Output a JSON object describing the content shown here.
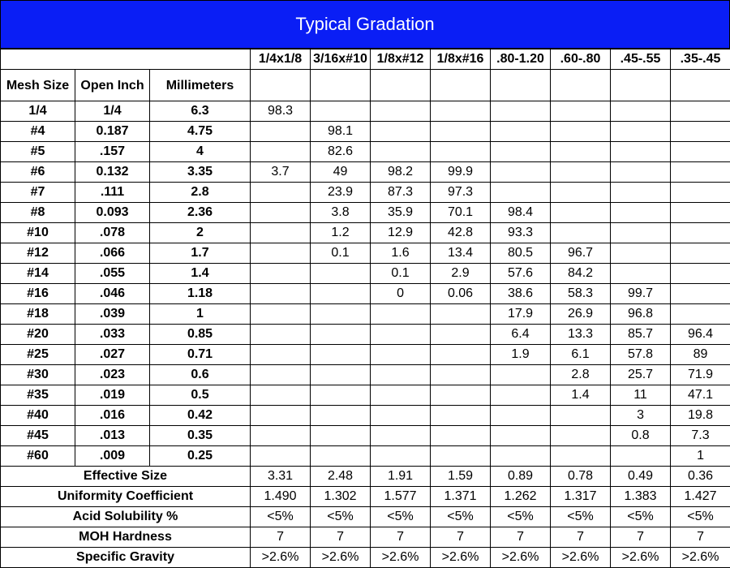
{
  "title": "Typical Gradation",
  "products": [
    "1/4x1/8",
    "3/16x#10",
    "1/8x#12",
    "1/8x#16",
    ".80-1.20",
    ".60-.80",
    ".45-.55",
    ".35-.45"
  ],
  "col_headers": {
    "mesh": "Mesh Size",
    "open": "Open Inch",
    "mm": "Millimeters"
  },
  "rows": [
    {
      "mesh": "1/4",
      "open": "1/4",
      "mm": "6.3",
      "values": [
        "98.3",
        "",
        "",
        "",
        "",
        "",
        "",
        ""
      ]
    },
    {
      "mesh": "#4",
      "open": "0.187",
      "mm": "4.75",
      "values": [
        "",
        "98.1",
        "",
        "",
        "",
        "",
        "",
        ""
      ]
    },
    {
      "mesh": "#5",
      "open": ".157",
      "mm": "4",
      "values": [
        "",
        "82.6",
        "",
        "",
        "",
        "",
        "",
        ""
      ]
    },
    {
      "mesh": "#6",
      "open": "0.132",
      "mm": "3.35",
      "values": [
        "3.7",
        "49",
        "98.2",
        "99.9",
        "",
        "",
        "",
        ""
      ]
    },
    {
      "mesh": "#7",
      "open": ".111",
      "mm": "2.8",
      "values": [
        "",
        "23.9",
        "87.3",
        "97.3",
        "",
        "",
        "",
        ""
      ]
    },
    {
      "mesh": "#8",
      "open": "0.093",
      "mm": "2.36",
      "values": [
        "",
        "3.8",
        "35.9",
        "70.1",
        "98.4",
        "",
        "",
        ""
      ]
    },
    {
      "mesh": "#10",
      "open": ".078",
      "mm": "2",
      "values": [
        "",
        "1.2",
        "12.9",
        "42.8",
        "93.3",
        "",
        "",
        ""
      ]
    },
    {
      "mesh": "#12",
      "open": ".066",
      "mm": "1.7",
      "values": [
        "",
        "0.1",
        "1.6",
        "13.4",
        "80.5",
        "96.7",
        "",
        ""
      ]
    },
    {
      "mesh": "#14",
      "open": ".055",
      "mm": "1.4",
      "values": [
        "",
        "",
        "0.1",
        "2.9",
        "57.6",
        "84.2",
        "",
        ""
      ]
    },
    {
      "mesh": "#16",
      "open": ".046",
      "mm": "1.18",
      "values": [
        "",
        "",
        "0",
        "0.06",
        "38.6",
        "58.3",
        "99.7",
        ""
      ]
    },
    {
      "mesh": "#18",
      "open": ".039",
      "mm": "1",
      "values": [
        "",
        "",
        "",
        "",
        "17.9",
        "26.9",
        "96.8",
        ""
      ]
    },
    {
      "mesh": "#20",
      "open": ".033",
      "mm": "0.85",
      "values": [
        "",
        "",
        "",
        "",
        "6.4",
        "13.3",
        "85.7",
        "96.4"
      ]
    },
    {
      "mesh": "#25",
      "open": ".027",
      "mm": "0.71",
      "values": [
        "",
        "",
        "",
        "",
        "1.9",
        "6.1",
        "57.8",
        "89"
      ]
    },
    {
      "mesh": "#30",
      "open": ".023",
      "mm": "0.6",
      "values": [
        "",
        "",
        "",
        "",
        "",
        "2.8",
        "25.7",
        "71.9"
      ]
    },
    {
      "mesh": "#35",
      "open": ".019",
      "mm": "0.5",
      "values": [
        "",
        "",
        "",
        "",
        "",
        "1.4",
        "11",
        "47.1"
      ]
    },
    {
      "mesh": "#40",
      "open": ".016",
      "mm": "0.42",
      "values": [
        "",
        "",
        "",
        "",
        "",
        "",
        "3",
        "19.8"
      ]
    },
    {
      "mesh": "#45",
      "open": ".013",
      "mm": "0.35",
      "values": [
        "",
        "",
        "",
        "",
        "",
        "",
        "0.8",
        "7.3"
      ]
    },
    {
      "mesh": "#60",
      "open": ".009",
      "mm": "0.25",
      "values": [
        "",
        "",
        "",
        "",
        "",
        "",
        "",
        "1"
      ]
    }
  ],
  "properties": [
    {
      "label": "Effective Size",
      "values": [
        "3.31",
        "2.48",
        "1.91",
        "1.59",
        "0.89",
        "0.78",
        "0.49",
        "0.36"
      ]
    },
    {
      "label": "Uniformity Coefficient",
      "values": [
        "1.490",
        "1.302",
        "1.577",
        "1.371",
        "1.262",
        "1.317",
        "1.383",
        "1.427"
      ]
    },
    {
      "label": "Acid Solubility %",
      "values": [
        "<5%",
        "<5%",
        "<5%",
        "<5%",
        "<5%",
        "<5%",
        "<5%",
        "<5%"
      ]
    },
    {
      "label": "MOH Hardness",
      "values": [
        "7",
        "7",
        "7",
        "7",
        "7",
        "7",
        "7",
        "7"
      ]
    },
    {
      "label": "Specific Gravity",
      "values": [
        ">2.6%",
        ">2.6%",
        ">2.6%",
        ">2.6%",
        ">2.6%",
        ">2.6%",
        ">2.6%",
        ">2.6%"
      ]
    }
  ],
  "colors": {
    "title_bg": "#0a1ef5",
    "title_text": "#ffffff"
  }
}
